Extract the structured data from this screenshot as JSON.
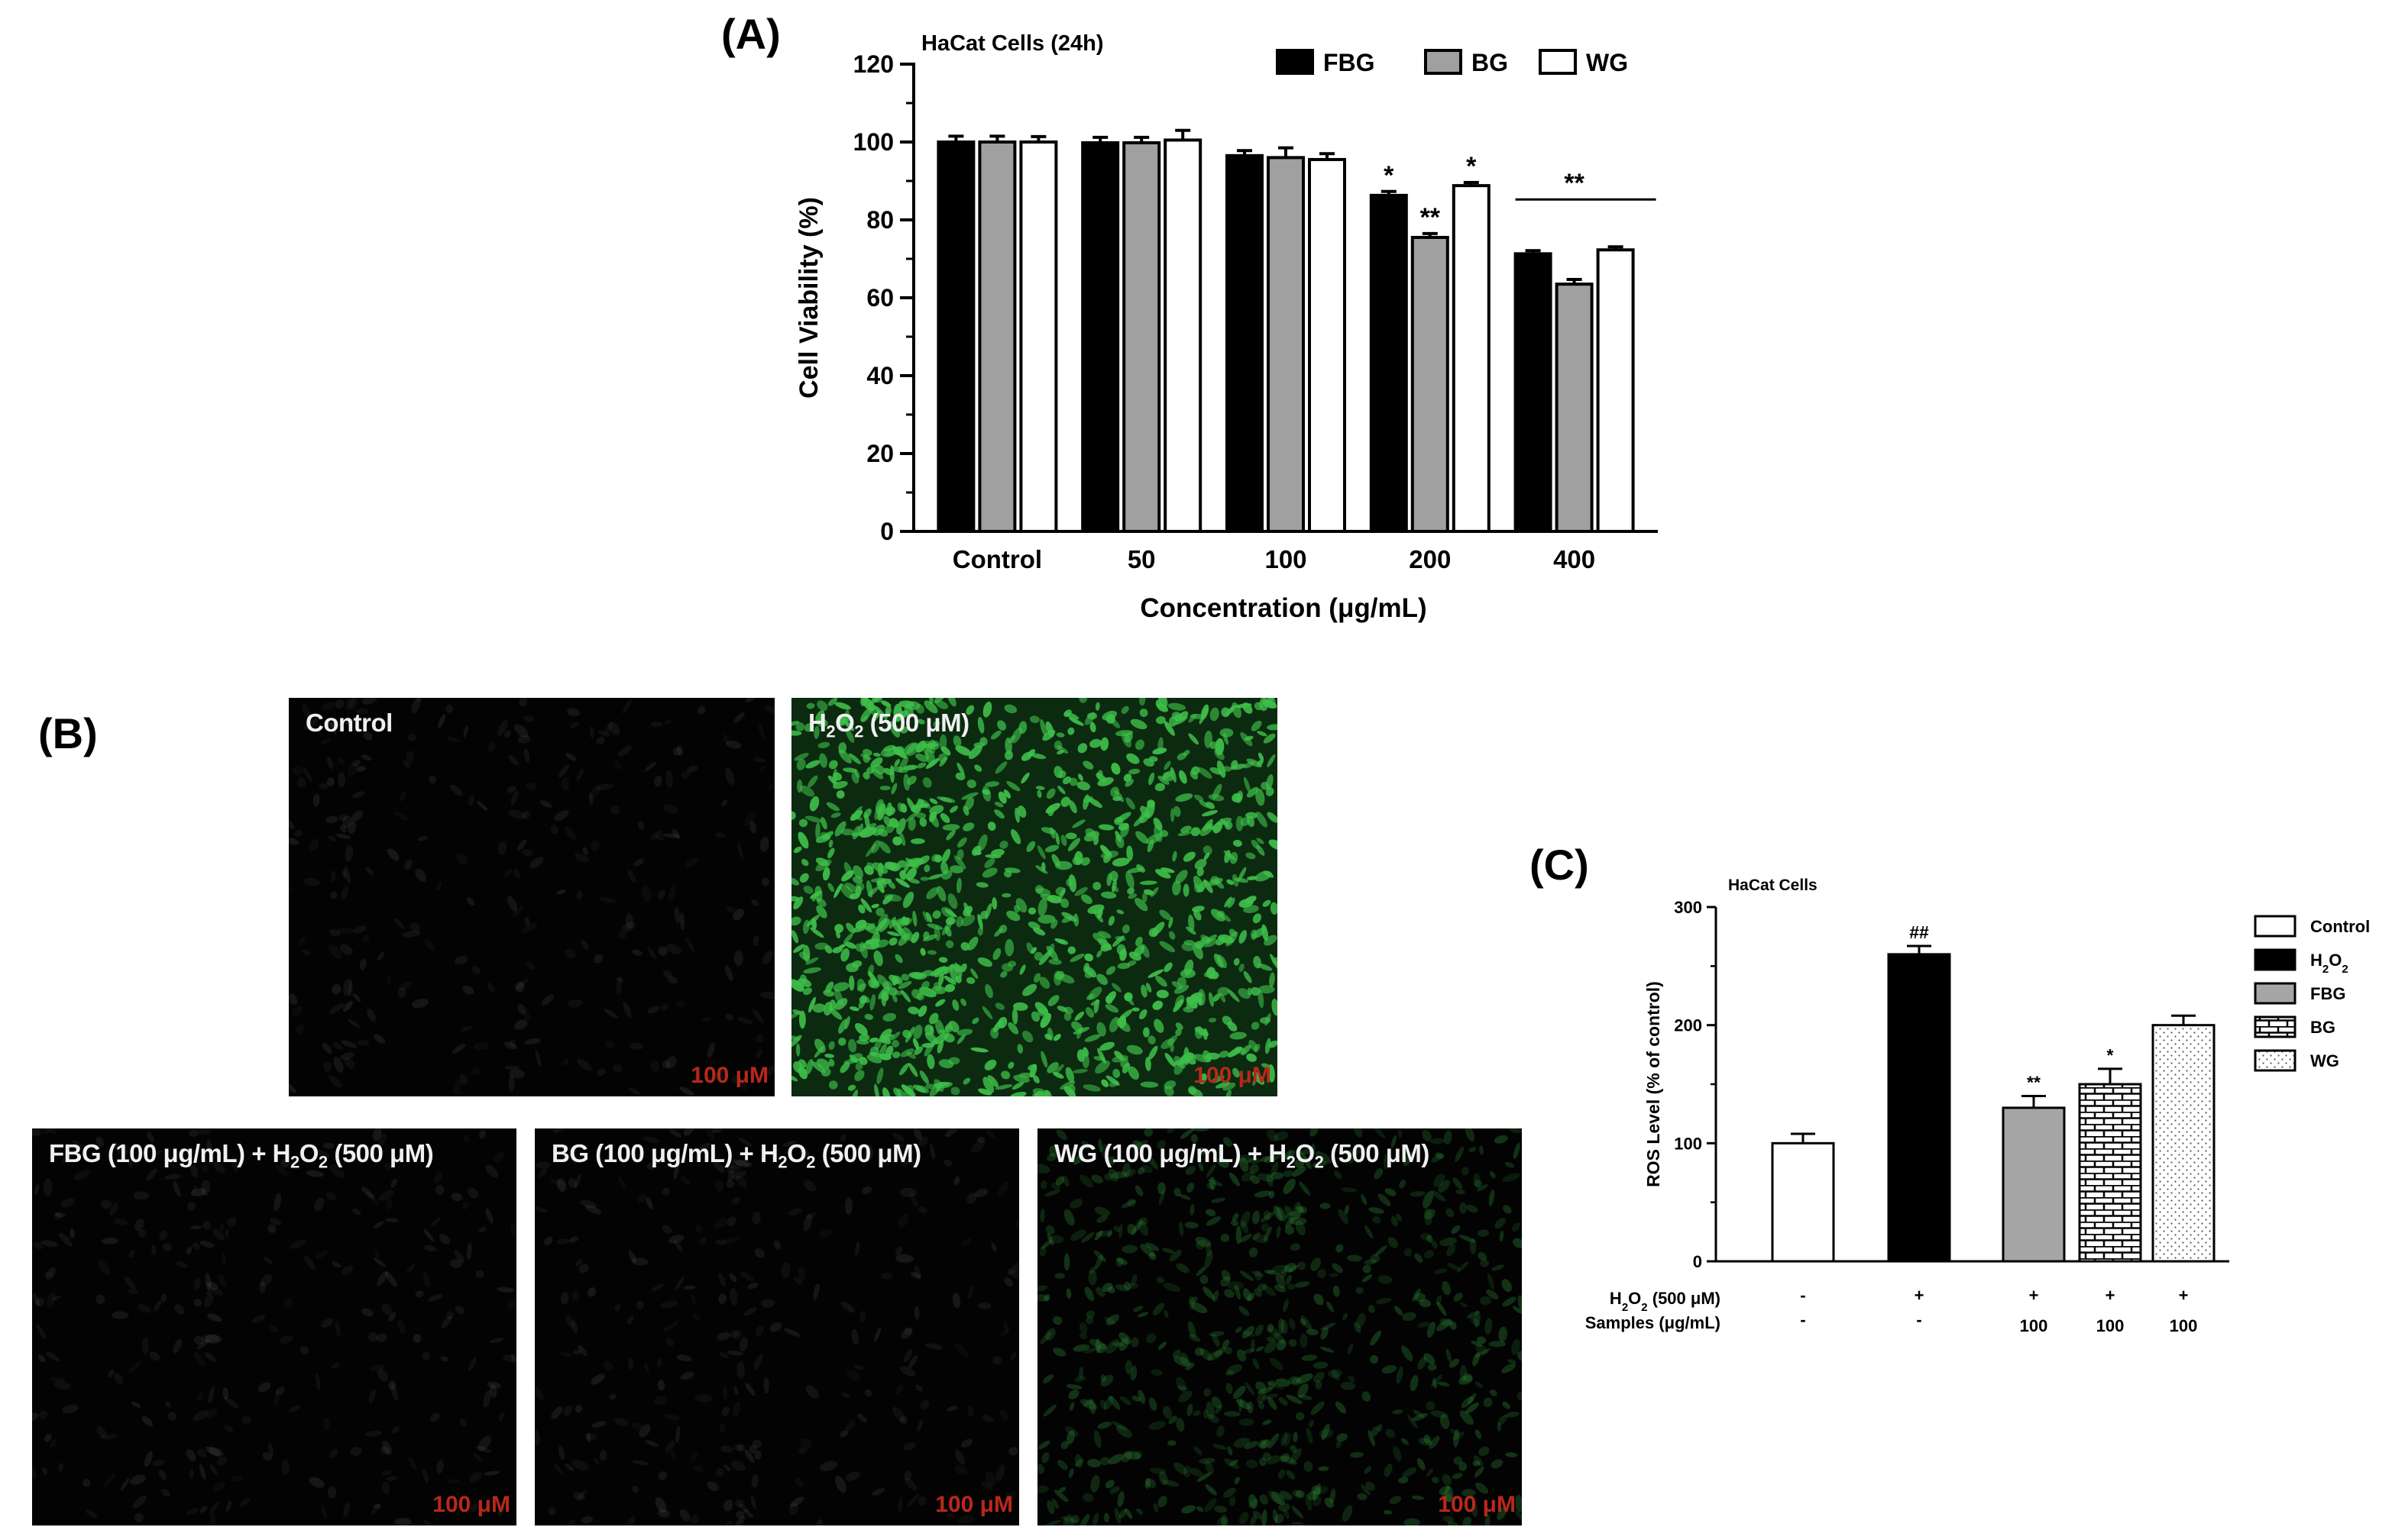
{
  "panelA": {
    "letter": "(A)",
    "chart_data": {
      "type": "bar",
      "title": "HaCat Cells (24h)",
      "xlabel": "Concentration (μg/mL)",
      "ylabel": "Cell Viability (%)",
      "ylim": [
        0,
        120
      ],
      "yticks": [
        "0",
        "20",
        "40",
        "60",
        "80",
        "100",
        "120"
      ],
      "categories": [
        "Control",
        "50",
        "100",
        "200",
        "400"
      ],
      "series": [
        {
          "name": "FBG",
          "color": "#000000",
          "values": [
            100,
            99.8,
            96.5,
            86.3,
            71.3
          ],
          "errors": [
            1.5,
            1.4,
            1.3,
            1.0,
            0.8
          ],
          "marks": [
            "",
            "",
            "",
            "*",
            ""
          ]
        },
        {
          "name": "BG",
          "color": "#a0a0a0",
          "values": [
            100,
            99.8,
            96,
            75.5,
            63.5
          ],
          "errors": [
            1.5,
            1.4,
            2.5,
            1.0,
            1.2
          ],
          "marks": [
            "",
            "",
            "",
            "**",
            ""
          ]
        },
        {
          "name": "WG",
          "color": "#ffffff",
          "values": [
            100,
            100.5,
            95.5,
            88.8,
            72.3
          ],
          "errors": [
            1.4,
            2.5,
            1.5,
            0.8,
            0.8
          ],
          "marks": [
            "",
            "",
            "",
            "*",
            ""
          ]
        }
      ],
      "group_marks": [
        {
          "category": "400",
          "text": "**"
        }
      ],
      "legend_position": "top-right",
      "grid": false
    }
  },
  "panelB": {
    "letter": "(B)",
    "images": [
      {
        "label": "Control",
        "scale": "100 μM",
        "fluorescence": "none"
      },
      {
        "label_main": "H",
        "label_sub1": "2",
        "label_mid": "O",
        "label_sub2": "2",
        "label_tail": " (500 μM)",
        "scale": "100 μM",
        "fluorescence": "high"
      },
      {
        "label_pre": "FBG (100 μg/mL) + H",
        "label_sub1": "2",
        "label_mid": "O",
        "label_sub2": "2",
        "label_tail": " (500 μM)",
        "scale": "100 μM",
        "fluorescence": "none"
      },
      {
        "label_pre": "BG (100 μg/mL) + H",
        "label_sub1": "2",
        "label_mid": "O",
        "label_sub2": "2",
        "label_tail": " (500 μM)",
        "scale": "100 μM",
        "fluorescence": "none"
      },
      {
        "label_pre": "WG (100 μg/mL) + H",
        "label_sub1": "2",
        "label_mid": "O",
        "label_sub2": "2",
        "label_tail": " (500 μM)",
        "scale": "100 μM",
        "fluorescence": "low"
      }
    ]
  },
  "panelC": {
    "letter": "(C)",
    "chart_data": {
      "type": "bar",
      "title": "HaCat Cells",
      "ylabel": "ROS Level (% of control)",
      "ylim": [
        0,
        300
      ],
      "yticks": [
        "0",
        "100",
        "200",
        "300"
      ],
      "categories": [
        "Control",
        "H2O2",
        "FBG",
        "BG",
        "WG"
      ],
      "values": [
        100,
        260,
        130,
        150,
        200
      ],
      "errors": [
        8,
        7,
        10,
        13,
        8
      ],
      "marks": [
        "",
        "##",
        "**",
        "*",
        ""
      ],
      "fills": [
        "white",
        "black",
        "gray",
        "brick",
        "dots"
      ],
      "legend": [
        {
          "name": "Control"
        },
        {
          "name_main": "H",
          "name_sub1": "2",
          "name_mid": "O",
          "name_sub2": "2"
        },
        {
          "name": "FBG"
        },
        {
          "name": "BG"
        },
        {
          "name": "WG"
        }
      ],
      "legend_position": "right",
      "treatment_rows": [
        {
          "label_main": "H",
          "label_sub1": "2",
          "label_mid": "O",
          "label_sub2": "2",
          "label_tail": " (500 μM)",
          "values": [
            "-",
            "+",
            "+",
            "+",
            "+"
          ]
        },
        {
          "label": "Samples (μg/mL)",
          "values": [
            "-",
            "-",
            "100",
            "100",
            "100"
          ]
        }
      ]
    }
  }
}
